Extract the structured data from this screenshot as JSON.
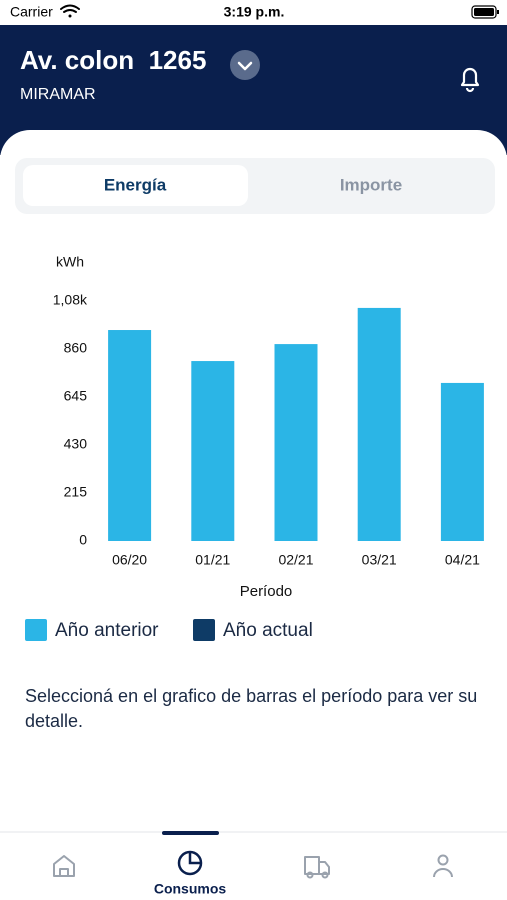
{
  "status_bar": {
    "carrier": "Carrier",
    "time": "3:19 p.m."
  },
  "header": {
    "title": "Av. colon  1265",
    "subtitle": "MIRAMAR"
  },
  "tabs": [
    "Energía",
    "Importe"
  ],
  "chart_data": {
    "type": "bar",
    "y_label": "kWh",
    "x_label": "Período",
    "categories": [
      "06/20",
      "01/21",
      "02/21",
      "03/21",
      "04/21"
    ],
    "series": [
      {
        "name": "Año anterior",
        "color": "#2bb5e6",
        "values": [
          945,
          806,
          882,
          1044,
          708
        ]
      },
      {
        "name": "Año actual",
        "color": "#0e3b66",
        "values": [
          null,
          null,
          null,
          null,
          null
        ]
      }
    ],
    "ylim": [
      0,
      1075
    ],
    "yticks": [
      0,
      215,
      430,
      645,
      860,
      {
        "value": 1075,
        "label": "1,08k"
      }
    ]
  },
  "message": "Seleccioná en el grafico de barras el período para ver su detalle.",
  "nav": {
    "active_label": "Consumos"
  }
}
